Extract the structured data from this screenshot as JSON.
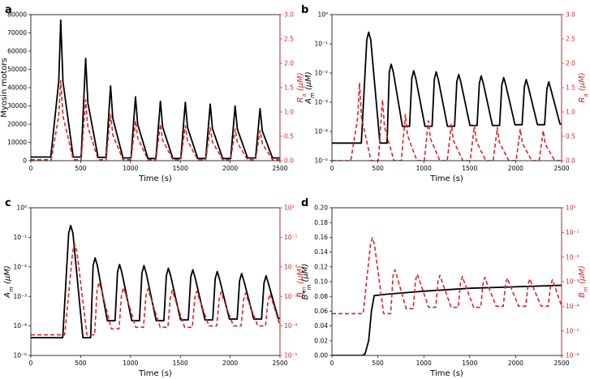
{
  "figure": {
    "panels": [
      "a",
      "b",
      "c",
      "d"
    ]
  },
  "chart_data": [
    {
      "panel": "a",
      "type": "line",
      "xlabel": "Time (s)",
      "ylabel": "Myosin motors",
      "ylabel_right": "R_a (μM)",
      "xlim": [
        0,
        2500
      ],
      "ylim": [
        0,
        80000
      ],
      "ylim_right": [
        0,
        3.0
      ],
      "yscale": "linear",
      "yscale_right": "linear",
      "xticks": [
        "0",
        "500",
        "1000",
        "1500",
        "2000",
        "2500"
      ],
      "yticks": [
        "0",
        "10000",
        "20000",
        "30000",
        "40000",
        "50000",
        "60000",
        "70000",
        "80000"
      ],
      "yticks_right": [
        "0.0",
        "0.5",
        "1.0",
        "1.5",
        "2.0",
        "2.5",
        "3.0"
      ],
      "series": [
        {
          "name": "Myosin motors",
          "axis": "left",
          "color": "#000000",
          "style": "solid",
          "onset": 200,
          "first_peak": [
            300,
            77000
          ],
          "period": 250,
          "peaks": [
            77000,
            56000,
            41000,
            35000,
            32500,
            32000,
            31000,
            30000,
            28500,
            28000,
            13000
          ],
          "troughs": [
            2000,
            1800,
            1500,
            1200,
            1200,
            1200,
            1200,
            1500,
            1500,
            1500
          ]
        },
        {
          "name": "R_a",
          "axis": "right",
          "color": "#d62728",
          "style": "dashed",
          "onset": 205,
          "first_peak": [
            300,
            1.65
          ],
          "period": 250,
          "peaks": [
            1.65,
            1.25,
            0.95,
            0.82,
            0.75,
            0.72,
            0.68,
            0.65,
            0.62,
            0.6,
            0.25
          ],
          "troughs": [
            0.02,
            0.02,
            0.02,
            0.02,
            0.02,
            0.02,
            0.02,
            0.02,
            0.02,
            0.02
          ]
        }
      ]
    },
    {
      "panel": "b",
      "type": "line",
      "xlabel": "Time (s)",
      "ylabel": "A_m (μM)",
      "ylabel_right": "R_a (μM)",
      "xlim": [
        0,
        2500
      ],
      "ylim": [
        1e-05,
        1
      ],
      "ylim_right": [
        0,
        3.0
      ],
      "yscale": "log",
      "yscale_right": "linear",
      "xticks": [
        "0",
        "500",
        "1000",
        "1500",
        "2000",
        "2500"
      ],
      "yticks": [
        "10⁻⁵",
        "10⁻⁴",
        "10⁻³",
        "10⁻²",
        "10⁻¹",
        "10⁰"
      ],
      "yticks_right": [
        "0.0",
        "0.5",
        "1.0",
        "1.5",
        "2.0",
        "2.5",
        "3.0"
      ],
      "series": [
        {
          "name": "A_m",
          "axis": "left",
          "color": "#000000",
          "style": "solid",
          "onset": 320,
          "first_peak": [
            400,
            0.25
          ],
          "period": 245,
          "peaks": [
            0.25,
            0.02,
            0.012,
            0.011,
            0.009,
            0.008,
            0.007,
            0.006,
            0.005,
            0.0045
          ],
          "troughs": [
            4e-05,
            0.00015,
            0.00015,
            0.00015,
            0.00016,
            0.00016,
            0.00017,
            0.00017,
            0.00018,
            0.00018
          ]
        },
        {
          "name": "R_a",
          "axis": "right",
          "color": "#d62728",
          "style": "dashed",
          "onset": 205,
          "first_peak": [
            300,
            1.6
          ],
          "period": 250,
          "peaks": [
            1.6,
            1.25,
            0.95,
            0.82,
            0.75,
            0.72,
            0.68,
            0.65,
            0.62,
            0.6
          ],
          "troughs": [
            0.0,
            0.0,
            0.0,
            0.0,
            0.0,
            0.0,
            0.0,
            0.0,
            0.0,
            0.0
          ]
        }
      ]
    },
    {
      "panel": "c",
      "type": "line",
      "xlabel": "Time (s)",
      "ylabel": "A_m (μM)",
      "ylabel_right": "B_m (μM)",
      "xlim": [
        0,
        2500
      ],
      "ylim": [
        1e-05,
        1
      ],
      "ylim_right": [
        1e-05,
        1
      ],
      "yscale": "log",
      "yscale_right": "log",
      "xticks": [
        "0",
        "500",
        "1000",
        "1500",
        "2000",
        "2500"
      ],
      "yticks": [
        "10⁻⁵",
        "10⁻⁴",
        "10⁻³",
        "10⁻²",
        "10⁻¹",
        "10⁰"
      ],
      "yticks_right": [
        "10⁻⁵",
        "10⁻⁴",
        "10⁻³",
        "10⁻²",
        "10⁻¹",
        "10⁰"
      ],
      "series": [
        {
          "name": "A_m",
          "axis": "left",
          "color": "#000000",
          "style": "solid",
          "onset": 320,
          "first_peak": [
            400,
            0.25
          ],
          "period": 245,
          "peaks": [
            0.25,
            0.02,
            0.012,
            0.011,
            0.009,
            0.008,
            0.007,
            0.006,
            0.005,
            0.0045
          ],
          "troughs": [
            4e-05,
            0.00015,
            0.00015,
            0.00015,
            0.00016,
            0.00016,
            0.00017,
            0.00017,
            0.00018,
            0.00018
          ]
        },
        {
          "name": "B_m",
          "axis": "right",
          "color": "#d62728",
          "style": "dashed",
          "onset": 340,
          "first_peak": [
            440,
            0.06
          ],
          "period": 245,
          "peaks": [
            0.06,
            0.003,
            0.002,
            0.0018,
            0.0016,
            0.0015,
            0.0014,
            0.0013,
            0.0012,
            0.0011
          ],
          "troughs": [
            5e-05,
            8e-05,
            9e-05,
            9e-05,
            9e-05,
            0.0001,
            0.0001,
            0.0001,
            0.0001,
            0.0001
          ]
        }
      ]
    },
    {
      "panel": "d",
      "type": "line",
      "xlabel": "Time (s)",
      "ylabel": "B*_m (μM)",
      "ylabel_right": "B_m (μM)",
      "xlim": [
        0,
        2500
      ],
      "ylim": [
        0,
        0.2
      ],
      "ylim_right": [
        1e-06,
        1
      ],
      "yscale": "linear",
      "yscale_right": "log",
      "xticks": [
        "0",
        "500",
        "1000",
        "1500",
        "2000",
        "2500"
      ],
      "yticks": [
        "0.00",
        "0.02",
        "0.04",
        "0.06",
        "0.08",
        "0.10",
        "0.12",
        "0.14",
        "0.16",
        "0.18",
        "0.20"
      ],
      "yticks_right": [
        "10⁻⁶",
        "10⁻⁵",
        "10⁻⁴",
        "10⁻³",
        "10⁻²",
        "10⁻¹",
        "10⁰"
      ],
      "series": [
        {
          "name": "B*_m",
          "axis": "left",
          "color": "#000000",
          "style": "solid",
          "x": [
            0,
            330,
            360,
            400,
            430,
            460,
            600,
            1000,
            1500,
            2000,
            2500
          ],
          "y": [
            0,
            0,
            0.002,
            0.02,
            0.06,
            0.081,
            0.083,
            0.087,
            0.091,
            0.093,
            0.095
          ]
        },
        {
          "name": "B_m",
          "axis": "right",
          "color": "#d62728",
          "style": "dashed",
          "onset": 340,
          "first_peak": [
            440,
            0.06
          ],
          "period": 245,
          "peaks": [
            0.06,
            0.003,
            0.002,
            0.0018,
            0.0016,
            0.0015,
            0.0014,
            0.0013,
            0.0012,
            0.0011
          ],
          "troughs": [
            5e-05,
            8e-05,
            9e-05,
            9e-05,
            9e-05,
            0.0001,
            0.0001,
            0.0001,
            0.0001,
            0.0001
          ]
        }
      ]
    }
  ]
}
